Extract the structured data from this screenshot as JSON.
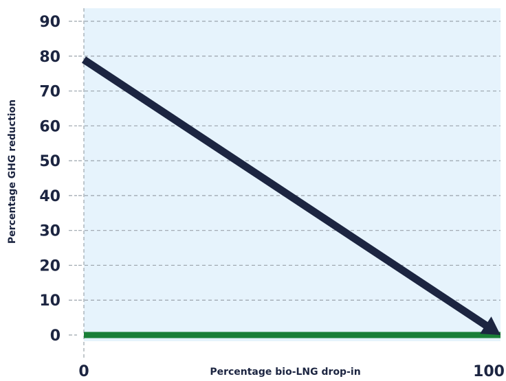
{
  "chart_data": {
    "type": "line",
    "xlabel": "Percentage bio-LNG drop-in",
    "ylabel": "Percentage GHG reduction",
    "xlim": [
      0,
      100
    ],
    "ylim": [
      0,
      90
    ],
    "x_ticks": [
      "0",
      "100"
    ],
    "y_ticks": [
      "0",
      "10",
      "20",
      "30",
      "40",
      "50",
      "60",
      "70",
      "80",
      "90"
    ],
    "grid": true,
    "legend": "none",
    "series": [
      {
        "x": [
          0,
          100
        ],
        "y": [
          79,
          0
        ],
        "color": "#1c2541",
        "arrow": true
      },
      {
        "x": [
          0,
          100
        ],
        "y": [
          0,
          0
        ],
        "color": "#1a7f37"
      }
    ],
    "colors": {
      "plot_background": "#e6f3fc",
      "gridline": "#9aa3ab",
      "text": "#1c2541"
    }
  }
}
